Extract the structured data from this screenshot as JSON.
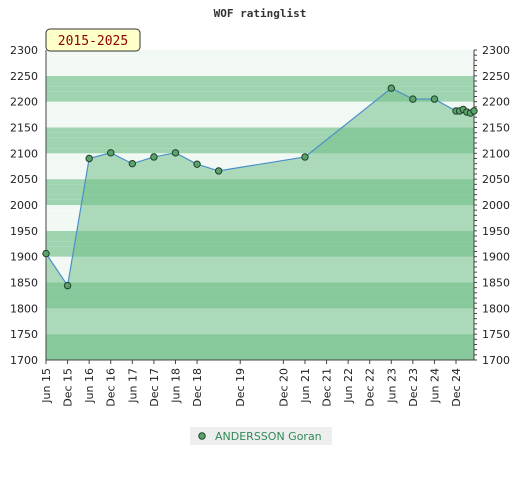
{
  "chart_data": {
    "type": "area",
    "title": "WOF ratinglist",
    "period_badge": "2015-2025",
    "ylim": [
      1700,
      2300
    ],
    "yticks": [
      1700,
      1750,
      1800,
      1850,
      1900,
      1950,
      2000,
      2050,
      2100,
      2150,
      2200,
      2250,
      2300
    ],
    "x_tick_labels": [
      "Jun 15",
      "Dec 15",
      "Jun 16",
      "Dec 16",
      "Jun 17",
      "Dec 17",
      "Jun 18",
      "Dec 18",
      "Dec 19",
      "Dec 20",
      "Jun 21",
      "Dec 21",
      "Jun 22",
      "Dec 22",
      "Jun 23",
      "Dec 23",
      "Jun 24",
      "Dec 24"
    ],
    "x_tick_dates": [
      "2015-06",
      "2015-12",
      "2016-06",
      "2016-12",
      "2017-06",
      "2017-12",
      "2018-06",
      "2018-12",
      "2019-12",
      "2020-12",
      "2021-06",
      "2021-12",
      "2022-06",
      "2022-12",
      "2023-06",
      "2023-12",
      "2024-06",
      "2024-12"
    ],
    "x_range": [
      "2015-06",
      "2025-05"
    ],
    "series": [
      {
        "name": "ANDERSSON Goran",
        "color": "#4a90c8",
        "marker_color": "#5aa36a",
        "points": [
          {
            "x": "2015-06",
            "y": 1906
          },
          {
            "x": "2015-12",
            "y": 1844
          },
          {
            "x": "2016-06",
            "y": 2090
          },
          {
            "x": "2016-12",
            "y": 2101
          },
          {
            "x": "2017-06",
            "y": 2080
          },
          {
            "x": "2017-12",
            "y": 2093
          },
          {
            "x": "2018-06",
            "y": 2101
          },
          {
            "x": "2018-12",
            "y": 2079
          },
          {
            "x": "2019-06",
            "y": 2066
          },
          {
            "x": "2021-06",
            "y": 2093
          },
          {
            "x": "2023-06",
            "y": 2226
          },
          {
            "x": "2023-12",
            "y": 2205
          },
          {
            "x": "2024-06",
            "y": 2205
          },
          {
            "x": "2024-12",
            "y": 2182
          },
          {
            "x": "2025-01",
            "y": 2182
          },
          {
            "x": "2025-02",
            "y": 2185
          },
          {
            "x": "2025-03",
            "y": 2180
          },
          {
            "x": "2025-04",
            "y": 2178
          },
          {
            "x": "2025-05",
            "y": 2182
          }
        ]
      }
    ],
    "grid": true,
    "legend_position": "bottom-center",
    "colors": {
      "area_fill": "#73c08a",
      "band_dark": "#9fd4b0",
      "band_light": "#f2f9f4",
      "legend_bg": "#eeeeee",
      "badge_bg": "#ffffc8"
    }
  }
}
